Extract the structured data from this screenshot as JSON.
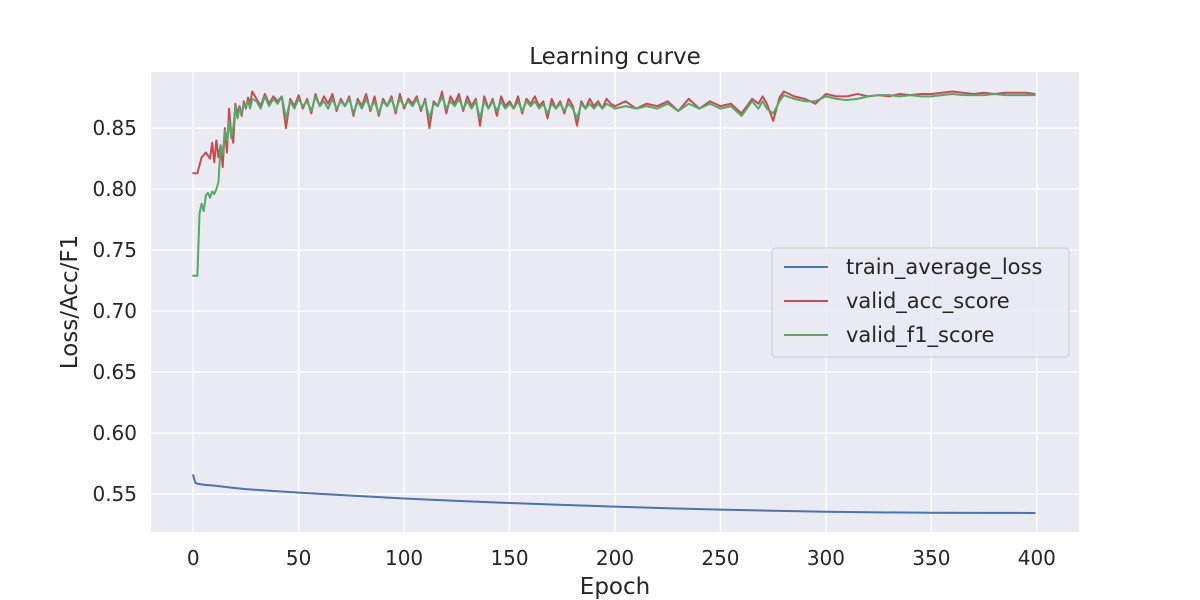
{
  "chart_data": {
    "type": "line",
    "title": "Learning curve",
    "xlabel": "Epoch",
    "ylabel": "Loss/Acc/F1",
    "xlim": [
      -20,
      420
    ],
    "ylim": [
      0.519,
      0.896
    ],
    "xticks": [
      0,
      50,
      100,
      150,
      200,
      250,
      300,
      350,
      400
    ],
    "yticks": [
      0.55,
      0.6,
      0.65,
      0.7,
      0.75,
      0.8,
      0.85
    ],
    "ytick_labels": [
      "0.55",
      "0.60",
      "0.65",
      "0.70",
      "0.75",
      "0.80",
      "0.85"
    ],
    "grid": true,
    "legend_position": "center-right",
    "background_color": "#eaeaf2",
    "series": [
      {
        "name": "train_average_loss",
        "color": "#4c72b0",
        "x": [
          0,
          1,
          2,
          5,
          10,
          15,
          20,
          25,
          30,
          40,
          50,
          75,
          100,
          125,
          150,
          175,
          200,
          225,
          250,
          275,
          300,
          325,
          350,
          375,
          399
        ],
        "y": [
          0.5655,
          0.5595,
          0.5585,
          0.5577,
          0.557,
          0.556,
          0.555,
          0.5541,
          0.5535,
          0.5524,
          0.5513,
          0.5488,
          0.5465,
          0.5445,
          0.5428,
          0.5412,
          0.5398,
          0.5385,
          0.5373,
          0.5364,
          0.5356,
          0.5351,
          0.5348,
          0.5347,
          0.5346
        ]
      },
      {
        "name": "valid_acc_score",
        "color": "#c44e52",
        "x": [
          0,
          2,
          4,
          6,
          8,
          9,
          10,
          11,
          12,
          13,
          14,
          15,
          16,
          17,
          18,
          19,
          20,
          21,
          22,
          23,
          24,
          25,
          26,
          27,
          28,
          30,
          32,
          34,
          36,
          38,
          40,
          42,
          44,
          46,
          48,
          50,
          52,
          54,
          56,
          58,
          60,
          62,
          64,
          66,
          68,
          70,
          72,
          74,
          76,
          78,
          80,
          82,
          84,
          86,
          88,
          90,
          92,
          94,
          96,
          98,
          100,
          102,
          104,
          106,
          108,
          110,
          112,
          114,
          116,
          118,
          120,
          122,
          124,
          126,
          128,
          130,
          132,
          134,
          136,
          138,
          140,
          142,
          144,
          146,
          148,
          150,
          152,
          154,
          156,
          158,
          160,
          162,
          164,
          166,
          168,
          170,
          172,
          174,
          176,
          178,
          180,
          182,
          184,
          186,
          188,
          190,
          192,
          194,
          196,
          198,
          200,
          205,
          210,
          215,
          220,
          225,
          230,
          235,
          240,
          245,
          250,
          255,
          260,
          265,
          268,
          270,
          272,
          275,
          278,
          280,
          285,
          290,
          295,
          300,
          305,
          310,
          315,
          320,
          325,
          330,
          335,
          340,
          345,
          350,
          355,
          360,
          365,
          370,
          375,
          380,
          385,
          390,
          395,
          399
        ],
        "y": [
          0.813,
          0.813,
          0.826,
          0.83,
          0.825,
          0.838,
          0.822,
          0.84,
          0.826,
          0.836,
          0.818,
          0.85,
          0.83,
          0.866,
          0.846,
          0.838,
          0.87,
          0.862,
          0.868,
          0.86,
          0.872,
          0.866,
          0.875,
          0.87,
          0.88,
          0.874,
          0.868,
          0.878,
          0.87,
          0.876,
          0.872,
          0.876,
          0.85,
          0.874,
          0.868,
          0.877,
          0.866,
          0.874,
          0.862,
          0.878,
          0.868,
          0.876,
          0.87,
          0.878,
          0.864,
          0.874,
          0.868,
          0.876,
          0.86,
          0.874,
          0.868,
          0.878,
          0.864,
          0.876,
          0.86,
          0.874,
          0.868,
          0.876,
          0.862,
          0.878,
          0.866,
          0.874,
          0.87,
          0.876,
          0.864,
          0.874,
          0.85,
          0.872,
          0.868,
          0.88,
          0.862,
          0.876,
          0.87,
          0.878,
          0.864,
          0.876,
          0.868,
          0.874,
          0.852,
          0.876,
          0.866,
          0.874,
          0.86,
          0.876,
          0.868,
          0.872,
          0.866,
          0.876,
          0.862,
          0.874,
          0.87,
          0.876,
          0.868,
          0.872,
          0.858,
          0.874,
          0.866,
          0.872,
          0.862,
          0.874,
          0.868,
          0.852,
          0.872,
          0.866,
          0.874,
          0.868,
          0.872,
          0.866,
          0.874,
          0.87,
          0.868,
          0.872,
          0.866,
          0.87,
          0.868,
          0.872,
          0.864,
          0.874,
          0.866,
          0.872,
          0.868,
          0.87,
          0.862,
          0.874,
          0.87,
          0.876,
          0.87,
          0.856,
          0.875,
          0.88,
          0.876,
          0.874,
          0.87,
          0.878,
          0.876,
          0.876,
          0.878,
          0.876,
          0.877,
          0.876,
          0.878,
          0.877,
          0.878,
          0.878,
          0.879,
          0.88,
          0.879,
          0.878,
          0.879,
          0.878,
          0.879,
          0.879,
          0.879,
          0.878
        ]
      },
      {
        "name": "valid_f1_score",
        "color": "#55a868",
        "x": [
          0,
          2,
          3,
          4,
          5,
          6,
          7,
          8,
          9,
          10,
          11,
          12,
          13,
          14,
          15,
          16,
          17,
          18,
          19,
          20,
          21,
          22,
          23,
          24,
          25,
          26,
          27,
          28,
          30,
          32,
          34,
          36,
          38,
          40,
          42,
          44,
          46,
          48,
          50,
          52,
          54,
          56,
          58,
          60,
          62,
          64,
          66,
          68,
          70,
          72,
          74,
          76,
          78,
          80,
          82,
          84,
          86,
          88,
          90,
          92,
          94,
          96,
          98,
          100,
          102,
          104,
          106,
          108,
          110,
          112,
          114,
          116,
          118,
          120,
          122,
          124,
          126,
          128,
          130,
          132,
          134,
          136,
          138,
          140,
          142,
          144,
          146,
          148,
          150,
          152,
          154,
          156,
          158,
          160,
          162,
          164,
          166,
          168,
          170,
          172,
          174,
          176,
          178,
          180,
          182,
          184,
          186,
          188,
          190,
          192,
          194,
          196,
          198,
          200,
          205,
          210,
          215,
          220,
          225,
          230,
          235,
          240,
          245,
          250,
          255,
          260,
          265,
          268,
          270,
          272,
          275,
          278,
          280,
          285,
          290,
          295,
          300,
          305,
          310,
          315,
          320,
          325,
          330,
          335,
          340,
          345,
          350,
          355,
          360,
          365,
          370,
          375,
          380,
          385,
          390,
          395,
          399
        ],
        "y": [
          0.729,
          0.729,
          0.78,
          0.788,
          0.782,
          0.795,
          0.797,
          0.793,
          0.798,
          0.796,
          0.8,
          0.806,
          0.836,
          0.828,
          0.848,
          0.84,
          0.856,
          0.842,
          0.85,
          0.868,
          0.858,
          0.866,
          0.862,
          0.87,
          0.868,
          0.872,
          0.866,
          0.874,
          0.872,
          0.866,
          0.876,
          0.868,
          0.874,
          0.87,
          0.876,
          0.858,
          0.872,
          0.866,
          0.874,
          0.868,
          0.872,
          0.864,
          0.876,
          0.868,
          0.872,
          0.866,
          0.874,
          0.866,
          0.872,
          0.868,
          0.874,
          0.862,
          0.872,
          0.866,
          0.874,
          0.866,
          0.872,
          0.862,
          0.872,
          0.868,
          0.874,
          0.864,
          0.874,
          0.868,
          0.872,
          0.868,
          0.874,
          0.866,
          0.872,
          0.858,
          0.87,
          0.868,
          0.876,
          0.866,
          0.872,
          0.868,
          0.874,
          0.866,
          0.872,
          0.866,
          0.872,
          0.858,
          0.872,
          0.866,
          0.872,
          0.864,
          0.872,
          0.866,
          0.87,
          0.866,
          0.872,
          0.864,
          0.872,
          0.868,
          0.872,
          0.866,
          0.87,
          0.862,
          0.87,
          0.866,
          0.87,
          0.864,
          0.87,
          0.866,
          0.858,
          0.87,
          0.866,
          0.87,
          0.866,
          0.87,
          0.866,
          0.87,
          0.868,
          0.866,
          0.868,
          0.866,
          0.868,
          0.866,
          0.87,
          0.864,
          0.87,
          0.866,
          0.87,
          0.866,
          0.868,
          0.86,
          0.872,
          0.866,
          0.872,
          0.866,
          0.862,
          0.872,
          0.877,
          0.874,
          0.872,
          0.872,
          0.876,
          0.874,
          0.873,
          0.874,
          0.876,
          0.877,
          0.877,
          0.876,
          0.877,
          0.876,
          0.876,
          0.877,
          0.878,
          0.877,
          0.877,
          0.877,
          0.878,
          0.877,
          0.877,
          0.877,
          0.877
        ]
      }
    ]
  }
}
